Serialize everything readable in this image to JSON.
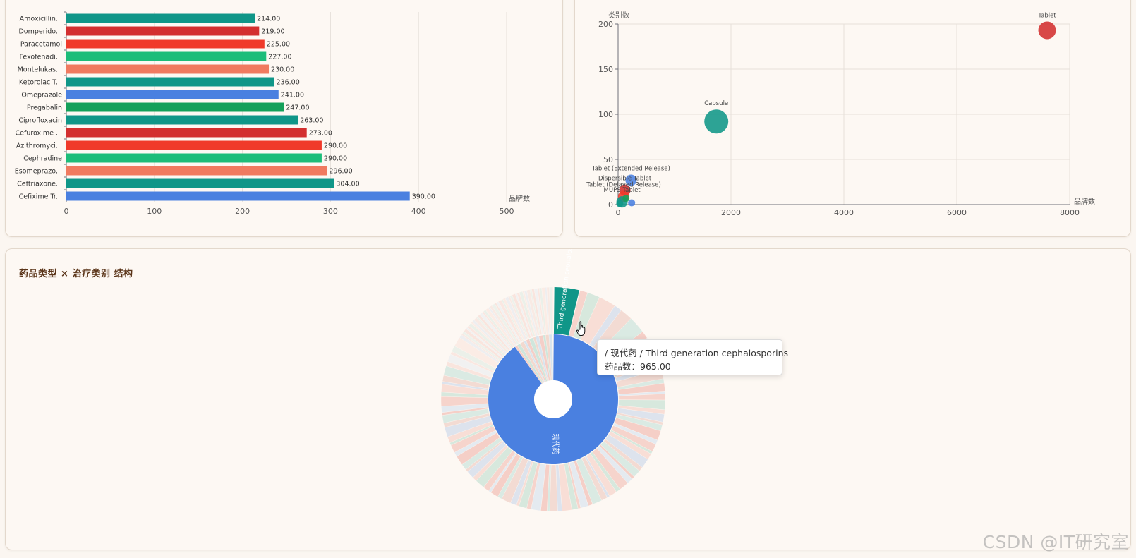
{
  "watermark": "CSDN @IT研究室",
  "colors": {
    "teal": "#109688",
    "red": "#d32f2f",
    "orange_red": "#f03a2a",
    "green": "#1dbd7a",
    "salmon": "#f07a60",
    "blue": "#4a80e0",
    "dark_green": "#14a05a"
  },
  "bar_chart": {
    "title": "",
    "chart_data": {
      "type": "bar",
      "orientation": "horizontal",
      "categories": [
        "Amoxicillin...",
        "Domperido...",
        "Paracetamol",
        "Fexofenadi...",
        "Montelukas...",
        "Ketorolac T...",
        "Omeprazole",
        "Pregabalin",
        "Ciprofloxacin",
        "Cefuroxime ...",
        "Azithromyci...",
        "Cephradine",
        "Esomeprazo...",
        "Ceftriaxone...",
        "Cefixime Tr..."
      ],
      "values": [
        214,
        219,
        225,
        227,
        230,
        236,
        241,
        247,
        263,
        273,
        290,
        290,
        296,
        304,
        390
      ],
      "value_labels": [
        "214.00",
        "219.00",
        "225.00",
        "227.00",
        "230.00",
        "236.00",
        "241.00",
        "247.00",
        "263.00",
        "273.00",
        "290.00",
        "290.00",
        "296.00",
        "304.00",
        "390.00"
      ],
      "bar_colors": [
        "teal",
        "red",
        "orange_red",
        "green",
        "salmon",
        "teal",
        "blue",
        "dark_green",
        "teal",
        "red",
        "orange_red",
        "green",
        "salmon",
        "teal",
        "blue"
      ],
      "xlabel": "品牌数",
      "xlim": [
        0,
        500
      ],
      "xticks": [
        "0",
        "100",
        "200",
        "300",
        "400",
        "500"
      ],
      "grid": true
    }
  },
  "scatter_chart": {
    "title": "",
    "chart_data": {
      "type": "scatter",
      "xlabel": "品牌数",
      "ylabel": "类别数",
      "xlim": [
        0,
        8000
      ],
      "ylim": [
        0,
        200
      ],
      "xticks": [
        "0",
        "2000",
        "4000",
        "6000",
        "8000"
      ],
      "yticks": [
        "0",
        "50",
        "100",
        "150",
        "200"
      ],
      "grid": true,
      "points": [
        {
          "label": "Tablet",
          "x": 7600,
          "y": 193,
          "color": "red",
          "size": "medium"
        },
        {
          "label": "Capsule",
          "x": 1740,
          "y": 92,
          "color": "teal",
          "size": "large"
        },
        {
          "label": "Tablet (Extended Release)",
          "x": 230,
          "y": 27,
          "color": "blue",
          "size": "small"
        },
        {
          "label": "Dispersible Tablet",
          "x": 120,
          "y": 16,
          "color": "red",
          "size": "small"
        },
        {
          "label": "Tablet (Delayed Release)",
          "x": 100,
          "y": 9,
          "color": "orange_red",
          "size": "small"
        },
        {
          "label": "MUPS Tablet",
          "x": 70,
          "y": 3,
          "color": "teal",
          "size": "small"
        },
        {
          "label": "",
          "x": 140,
          "y": 7,
          "color": "dark_green",
          "size": "tiny"
        },
        {
          "label": "",
          "x": 240,
          "y": 2,
          "color": "blue",
          "size": "tiny"
        },
        {
          "label": "",
          "x": 30,
          "y": 1,
          "color": "teal",
          "size": "tiny"
        }
      ]
    }
  },
  "sunburst_chart": {
    "title": "药品类型 × 治疗类别 结构",
    "chart_data": {
      "type": "sunburst",
      "inner_ring": [
        {
          "name": "现代药",
          "share": 0.9
        }
      ],
      "highlighted_outer": {
        "name": "Third generation cephalosporins",
        "value": 965,
        "label": "Third generation cephalosporins",
        "color": "teal"
      }
    }
  },
  "tooltip": {
    "line1": "/ 现代药 / Third generation cephalosporins",
    "line2": "药品数：965.00"
  }
}
